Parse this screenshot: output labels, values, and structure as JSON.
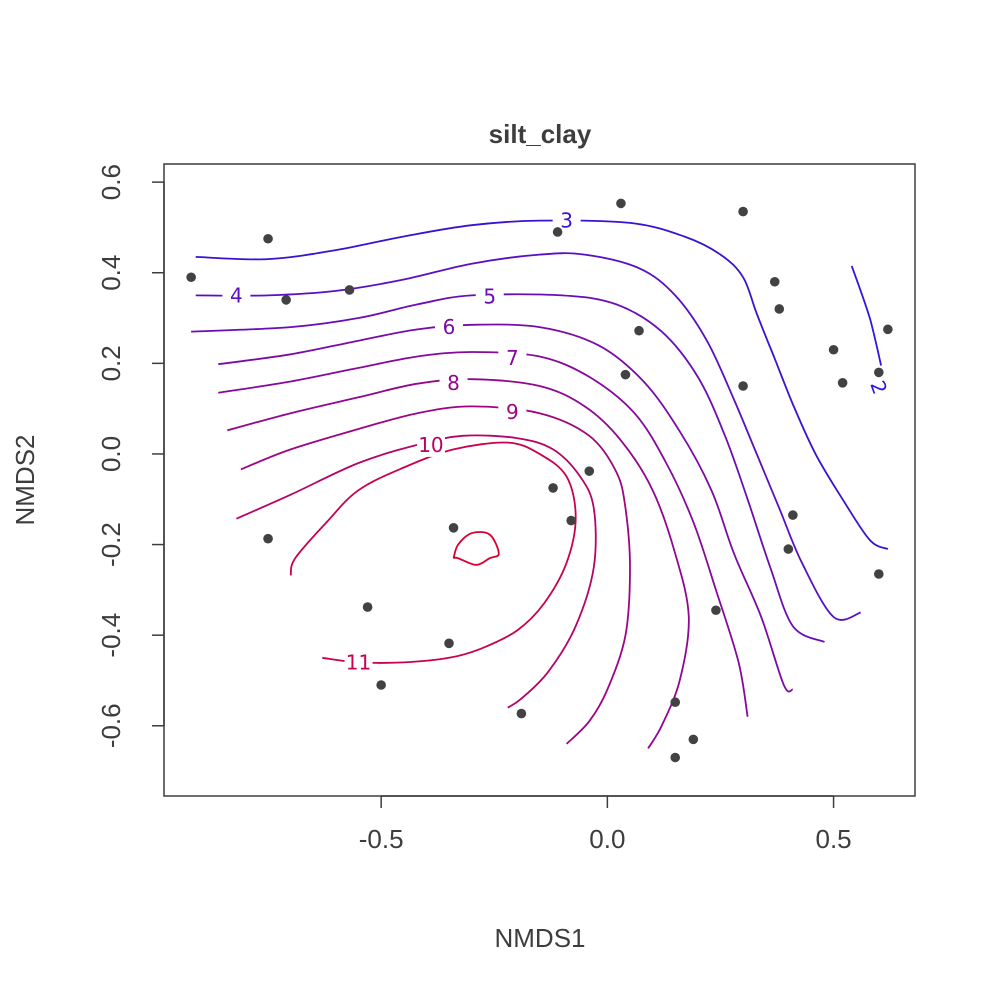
{
  "chart_data": {
    "type": "scatter",
    "title": "silt_clay",
    "xlabel": "NMDS1",
    "ylabel": "NMDS2",
    "xlim": [
      -0.98,
      0.68
    ],
    "ylim": [
      -0.755,
      0.64
    ],
    "xticks": [
      -0.5,
      0.0,
      0.5
    ],
    "xtick_labels": [
      "-0.5",
      "0.0",
      "0.5"
    ],
    "yticks": [
      -0.6,
      -0.4,
      -0.2,
      0.0,
      0.2,
      0.4,
      0.6
    ],
    "ytick_labels": [
      "-0.6",
      "-0.4",
      "-0.2",
      "0.0",
      "0.2",
      "0.4",
      "0.6"
    ],
    "grid": false,
    "points": [
      {
        "x": -0.92,
        "y": 0.39
      },
      {
        "x": -0.75,
        "y": 0.475
      },
      {
        "x": -0.71,
        "y": 0.34
      },
      {
        "x": -0.57,
        "y": 0.362
      },
      {
        "x": -0.75,
        "y": -0.187
      },
      {
        "x": -0.53,
        "y": -0.338
      },
      {
        "x": -0.5,
        "y": -0.51
      },
      {
        "x": -0.34,
        "y": -0.163
      },
      {
        "x": -0.35,
        "y": -0.418
      },
      {
        "x": -0.19,
        "y": -0.573
      },
      {
        "x": -0.12,
        "y": -0.075
      },
      {
        "x": -0.08,
        "y": -0.147
      },
      {
        "x": -0.11,
        "y": 0.49
      },
      {
        "x": 0.03,
        "y": 0.553
      },
      {
        "x": -0.04,
        "y": -0.038
      },
      {
        "x": 0.04,
        "y": 0.175
      },
      {
        "x": 0.07,
        "y": 0.272
      },
      {
        "x": 0.15,
        "y": -0.548
      },
      {
        "x": 0.15,
        "y": -0.67
      },
      {
        "x": 0.19,
        "y": -0.63
      },
      {
        "x": 0.24,
        "y": -0.345
      },
      {
        "x": 0.3,
        "y": 0.535
      },
      {
        "x": 0.3,
        "y": 0.15
      },
      {
        "x": 0.37,
        "y": 0.38
      },
      {
        "x": 0.38,
        "y": 0.32
      },
      {
        "x": 0.4,
        "y": -0.21
      },
      {
        "x": 0.41,
        "y": -0.135
      },
      {
        "x": 0.5,
        "y": 0.23
      },
      {
        "x": 0.52,
        "y": 0.157
      },
      {
        "x": 0.6,
        "y": -0.265
      },
      {
        "x": 0.6,
        "y": 0.18
      },
      {
        "x": 0.62,
        "y": 0.275
      }
    ],
    "contours": [
      {
        "level": "2",
        "color": "#2f18df",
        "label_at": [
          0.6,
          0.147
        ],
        "label_rot": 70,
        "path": [
          [
            0.54,
            0.415
          ],
          [
            0.56,
            0.36
          ],
          [
            0.58,
            0.3
          ],
          [
            0.595,
            0.24
          ],
          [
            0.605,
            0.195
          ]
        ]
      },
      {
        "level": "3",
        "color": "#3a13d2",
        "label_at": [
          -0.09,
          0.515
        ],
        "label_rot": 0,
        "path": [
          [
            -0.91,
            0.435
          ],
          [
            -0.75,
            0.43
          ],
          [
            -0.6,
            0.45
          ],
          [
            -0.45,
            0.48
          ],
          [
            -0.3,
            0.505
          ],
          [
            -0.15,
            0.515
          ],
          [
            0.05,
            0.51
          ],
          [
            0.17,
            0.48
          ],
          [
            0.25,
            0.44
          ],
          [
            0.3,
            0.39
          ],
          [
            0.33,
            0.31
          ],
          [
            0.37,
            0.21
          ],
          [
            0.41,
            0.11
          ],
          [
            0.46,
            0.0
          ],
          [
            0.52,
            -0.1
          ],
          [
            0.58,
            -0.19
          ],
          [
            0.62,
            -0.21
          ]
        ]
      },
      {
        "level": "4",
        "color": "#5a0fc3",
        "label_at": [
          -0.82,
          0.35
        ],
        "label_rot": 0,
        "path": [
          [
            -0.91,
            0.35
          ],
          [
            -0.75,
            0.35
          ],
          [
            -0.6,
            0.36
          ],
          [
            -0.45,
            0.385
          ],
          [
            -0.3,
            0.42
          ],
          [
            -0.15,
            0.44
          ],
          [
            -0.05,
            0.44
          ],
          [
            0.07,
            0.41
          ],
          [
            0.15,
            0.35
          ],
          [
            0.22,
            0.25
          ],
          [
            0.28,
            0.12
          ],
          [
            0.33,
            0.0
          ],
          [
            0.38,
            -0.12
          ],
          [
            0.43,
            -0.24
          ],
          [
            0.5,
            -0.36
          ],
          [
            0.56,
            -0.35
          ]
        ]
      },
      {
        "level": "5",
        "color": "#6b0db6",
        "label_at": [
          -0.26,
          0.348
        ],
        "label_rot": 0,
        "path": [
          [
            -0.92,
            0.27
          ],
          [
            -0.7,
            0.28
          ],
          [
            -0.55,
            0.3
          ],
          [
            -0.42,
            0.33
          ],
          [
            -0.3,
            0.35
          ],
          [
            -0.1,
            0.35
          ],
          [
            0.02,
            0.33
          ],
          [
            0.12,
            0.27
          ],
          [
            0.2,
            0.17
          ],
          [
            0.26,
            0.04
          ],
          [
            0.31,
            -0.1
          ],
          [
            0.36,
            -0.25
          ],
          [
            0.41,
            -0.38
          ],
          [
            0.48,
            -0.415
          ]
        ]
      },
      {
        "level": "6",
        "color": "#7a0ba8",
        "label_at": [
          -0.35,
          0.28
        ],
        "label_rot": 0,
        "path": [
          [
            -0.86,
            0.198
          ],
          [
            -0.7,
            0.22
          ],
          [
            -0.55,
            0.25
          ],
          [
            -0.42,
            0.275
          ],
          [
            -0.3,
            0.285
          ],
          [
            -0.15,
            0.28
          ],
          [
            -0.02,
            0.24
          ],
          [
            0.08,
            0.16
          ],
          [
            0.16,
            0.05
          ],
          [
            0.23,
            -0.08
          ],
          [
            0.28,
            -0.22
          ],
          [
            0.34,
            -0.36
          ],
          [
            0.39,
            -0.51
          ],
          [
            0.41,
            -0.52
          ]
        ]
      },
      {
        "level": "7",
        "color": "#86099c",
        "label_at": [
          -0.21,
          0.212
        ],
        "label_rot": 0,
        "path": [
          [
            -0.86,
            0.135
          ],
          [
            -0.7,
            0.16
          ],
          [
            -0.55,
            0.19
          ],
          [
            -0.42,
            0.215
          ],
          [
            -0.3,
            0.225
          ],
          [
            -0.15,
            0.215
          ],
          [
            -0.04,
            0.17
          ],
          [
            0.06,
            0.09
          ],
          [
            0.13,
            -0.02
          ],
          [
            0.19,
            -0.15
          ],
          [
            0.24,
            -0.3
          ],
          [
            0.29,
            -0.46
          ],
          [
            0.31,
            -0.58
          ]
        ]
      },
      {
        "level": "8",
        "color": "#92078f",
        "label_at": [
          -0.34,
          0.157
        ],
        "label_rot": 0,
        "path": [
          [
            -0.84,
            0.052
          ],
          [
            -0.7,
            0.09
          ],
          [
            -0.55,
            0.125
          ],
          [
            -0.42,
            0.155
          ],
          [
            -0.3,
            0.165
          ],
          [
            -0.15,
            0.15
          ],
          [
            -0.05,
            0.105
          ],
          [
            0.03,
            0.03
          ],
          [
            0.1,
            -0.08
          ],
          [
            0.15,
            -0.22
          ],
          [
            0.18,
            -0.36
          ],
          [
            0.16,
            -0.5
          ],
          [
            0.12,
            -0.6
          ],
          [
            0.09,
            -0.65
          ]
        ]
      },
      {
        "level": "9",
        "color": "#9f0582",
        "label_at": [
          -0.21,
          0.093
        ],
        "label_rot": 0,
        "path": [
          [
            -0.81,
            -0.034
          ],
          [
            -0.7,
            0.01
          ],
          [
            -0.55,
            0.055
          ],
          [
            -0.42,
            0.09
          ],
          [
            -0.3,
            0.105
          ],
          [
            -0.15,
            0.09
          ],
          [
            -0.04,
            0.04
          ],
          [
            0.02,
            -0.04
          ],
          [
            0.04,
            -0.12
          ],
          [
            0.05,
            -0.25
          ],
          [
            0.04,
            -0.4
          ],
          [
            0.0,
            -0.52
          ],
          [
            -0.04,
            -0.59
          ],
          [
            -0.09,
            -0.64
          ]
        ]
      },
      {
        "level": "10",
        "color": "#b50468",
        "label_at": [
          -0.39,
          0.02
        ],
        "label_rot": 0,
        "path": [
          [
            -0.82,
            -0.143
          ],
          [
            -0.7,
            -0.09
          ],
          [
            -0.55,
            -0.02
          ],
          [
            -0.42,
            0.02
          ],
          [
            -0.32,
            0.04
          ],
          [
            -0.2,
            0.035
          ],
          [
            -0.12,
            0.01
          ],
          [
            -0.06,
            -0.05
          ],
          [
            -0.03,
            -0.12
          ],
          [
            -0.03,
            -0.25
          ],
          [
            -0.07,
            -0.38
          ],
          [
            -0.13,
            -0.48
          ],
          [
            -0.19,
            -0.54
          ],
          [
            -0.22,
            -0.56
          ]
        ]
      },
      {
        "level": "11",
        "color": "#c8024e",
        "label_at": [
          -0.55,
          -0.46
        ],
        "label_rot": 0,
        "path": [
          [
            -0.7,
            -0.268
          ],
          [
            -0.69,
            -0.23
          ],
          [
            -0.62,
            -0.15
          ],
          [
            -0.55,
            -0.08
          ],
          [
            -0.45,
            -0.03
          ],
          [
            -0.34,
            0.01
          ],
          [
            -0.22,
            0.025
          ],
          [
            -0.15,
            0.0
          ],
          [
            -0.09,
            -0.05
          ],
          [
            -0.07,
            -0.14
          ],
          [
            -0.09,
            -0.24
          ],
          [
            -0.14,
            -0.33
          ],
          [
            -0.2,
            -0.39
          ],
          [
            -0.28,
            -0.43
          ],
          [
            -0.35,
            -0.45
          ],
          [
            -0.45,
            -0.46
          ],
          [
            -0.55,
            -0.46
          ],
          [
            -0.63,
            -0.45
          ]
        ]
      },
      {
        "level": "",
        "color": "#d70030",
        "label_at": null,
        "label_rot": 0,
        "path": [
          [
            -0.34,
            -0.23
          ],
          [
            -0.33,
            -0.2
          ],
          [
            -0.3,
            -0.175
          ],
          [
            -0.26,
            -0.178
          ],
          [
            -0.24,
            -0.22
          ],
          [
            -0.26,
            -0.23
          ],
          [
            -0.29,
            -0.245
          ],
          [
            -0.33,
            -0.23
          ],
          [
            -0.34,
            -0.23
          ]
        ]
      }
    ]
  }
}
